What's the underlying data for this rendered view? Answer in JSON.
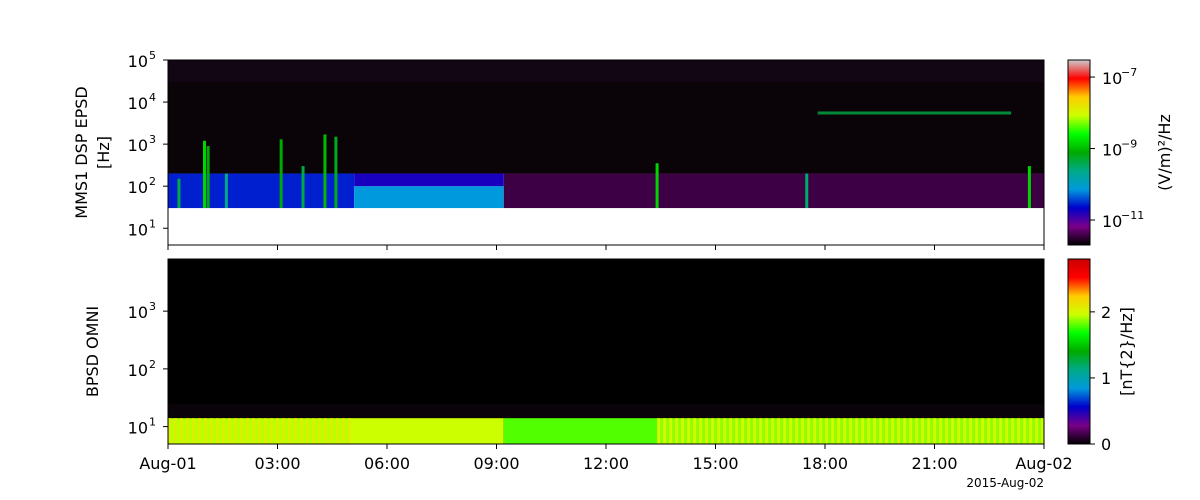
{
  "chart_data": [
    {
      "type": "heatmap",
      "ylabel_lines": [
        "MMS1 DSP EPSD",
        "[Hz]"
      ],
      "yscale": "log",
      "ylim": [
        4,
        100000
      ],
      "y_ticks": [
        {
          "value": 10,
          "base": "10",
          "exp": "1"
        },
        {
          "value": 100,
          "base": "10",
          "exp": "2"
        },
        {
          "value": 1000,
          "base": "10",
          "exp": "3"
        },
        {
          "value": 10000,
          "base": "10",
          "exp": "4"
        },
        {
          "value": 100000,
          "base": "10",
          "exp": "5"
        }
      ],
      "colorbar": {
        "label": "(V/m)²/Hz",
        "scale": "log",
        "range": [
          2e-12,
          3e-07
        ],
        "ticks": [
          {
            "value": 1e-11,
            "base": "10",
            "exp": "−11"
          },
          {
            "value": 1e-09,
            "base": "10",
            "exp": "−9"
          },
          {
            "value": 1e-07,
            "base": "10",
            "exp": "−7"
          }
        ]
      },
      "blocks": [
        {
          "t": [
            0,
            5.1
          ],
          "f": [
            30,
            200
          ],
          "level": 0.22
        },
        {
          "t": [
            5.1,
            9.2
          ],
          "f": [
            30,
            100
          ],
          "level": 0.3
        },
        {
          "t": [
            5.1,
            9.2
          ],
          "f": [
            100,
            200
          ],
          "level": 0.18
        },
        {
          "t": [
            9.2,
            24
          ],
          "f": [
            30,
            200
          ],
          "level": 0.05
        }
      ],
      "bursts": [
        {
          "t": 0.3,
          "f": [
            30,
            150
          ],
          "level": 0.45
        },
        {
          "t": 1.0,
          "f": [
            30,
            1200
          ],
          "level": 0.55
        },
        {
          "t": 1.1,
          "f": [
            30,
            900
          ],
          "level": 0.5
        },
        {
          "t": 1.6,
          "f": [
            30,
            200
          ],
          "level": 0.4
        },
        {
          "t": 3.1,
          "f": [
            30,
            1300
          ],
          "level": 0.5
        },
        {
          "t": 3.7,
          "f": [
            30,
            300
          ],
          "level": 0.45
        },
        {
          "t": 4.3,
          "f": [
            30,
            1700
          ],
          "level": 0.52
        },
        {
          "t": 4.6,
          "f": [
            30,
            1500
          ],
          "level": 0.48
        },
        {
          "t": 13.4,
          "f": [
            30,
            350
          ],
          "level": 0.55
        },
        {
          "t": 17.5,
          "f": [
            30,
            200
          ],
          "level": 0.42
        },
        {
          "t": 23.6,
          "f": [
            30,
            300
          ],
          "level": 0.55
        }
      ],
      "lines": [
        {
          "t": [
            17.8,
            23.1
          ],
          "f": 5500,
          "level": 0.45
        }
      ]
    },
    {
      "type": "heatmap",
      "ylabel_lines": [
        "BPSD OMNI"
      ],
      "yscale": "log",
      "ylim": [
        5,
        8000
      ],
      "y_ticks": [
        {
          "value": 10,
          "base": "10",
          "exp": "1"
        },
        {
          "value": 100,
          "base": "10",
          "exp": "2"
        },
        {
          "value": 1000,
          "base": "10",
          "exp": "3"
        }
      ],
      "x_ticks": [
        "Aug-01",
        "03:00",
        "06:00",
        "09:00",
        "12:00",
        "15:00",
        "18:00",
        "21:00",
        "Aug-02"
      ],
      "xlim_hours": [
        0,
        24
      ],
      "colorbar": {
        "label": "[nT{2}/Hz]",
        "scale": "linear",
        "range": [
          0,
          2.8
        ],
        "ticks": [
          {
            "value": 0,
            "text": "0"
          },
          {
            "value": 1,
            "text": "1"
          },
          {
            "value": 2,
            "text": "2"
          }
        ]
      },
      "band": {
        "f": [
          5,
          14
        ]
      },
      "segments": [
        {
          "t": [
            0,
            5.0
          ],
          "level": 0.69,
          "striped": true
        },
        {
          "t": [
            5.0,
            9.2
          ],
          "level": 0.7,
          "striped": false
        },
        {
          "t": [
            9.2,
            13.4
          ],
          "level": 0.64,
          "striped": false
        },
        {
          "t": [
            13.4,
            24
          ],
          "level": 0.67,
          "striped": true
        }
      ]
    }
  ],
  "date_caption": "2015-Aug-02"
}
